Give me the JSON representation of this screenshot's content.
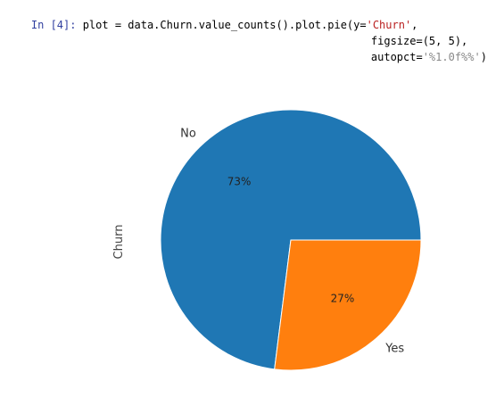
{
  "cell": {
    "prompt": "In [4]:",
    "line1_code": " plot = data.Churn.value_counts().plot.pie(y=",
    "line1_str": "'Churn'",
    "line1_end": ",",
    "line2": "figsize=(5, 5),",
    "line3_code": "autopct=",
    "line3_str": "'%1.0f%%'",
    "line3_end": ")"
  },
  "chart_data": {
    "type": "pie",
    "categories": [
      "No",
      "Yes"
    ],
    "values": [
      73,
      27
    ],
    "autopct_labels": [
      "73%",
      "27%"
    ],
    "ylabel": "Churn",
    "colors": [
      "#1f77b4",
      "#ff7f0e"
    ],
    "startangle": 0,
    "counterclockwise": true
  }
}
